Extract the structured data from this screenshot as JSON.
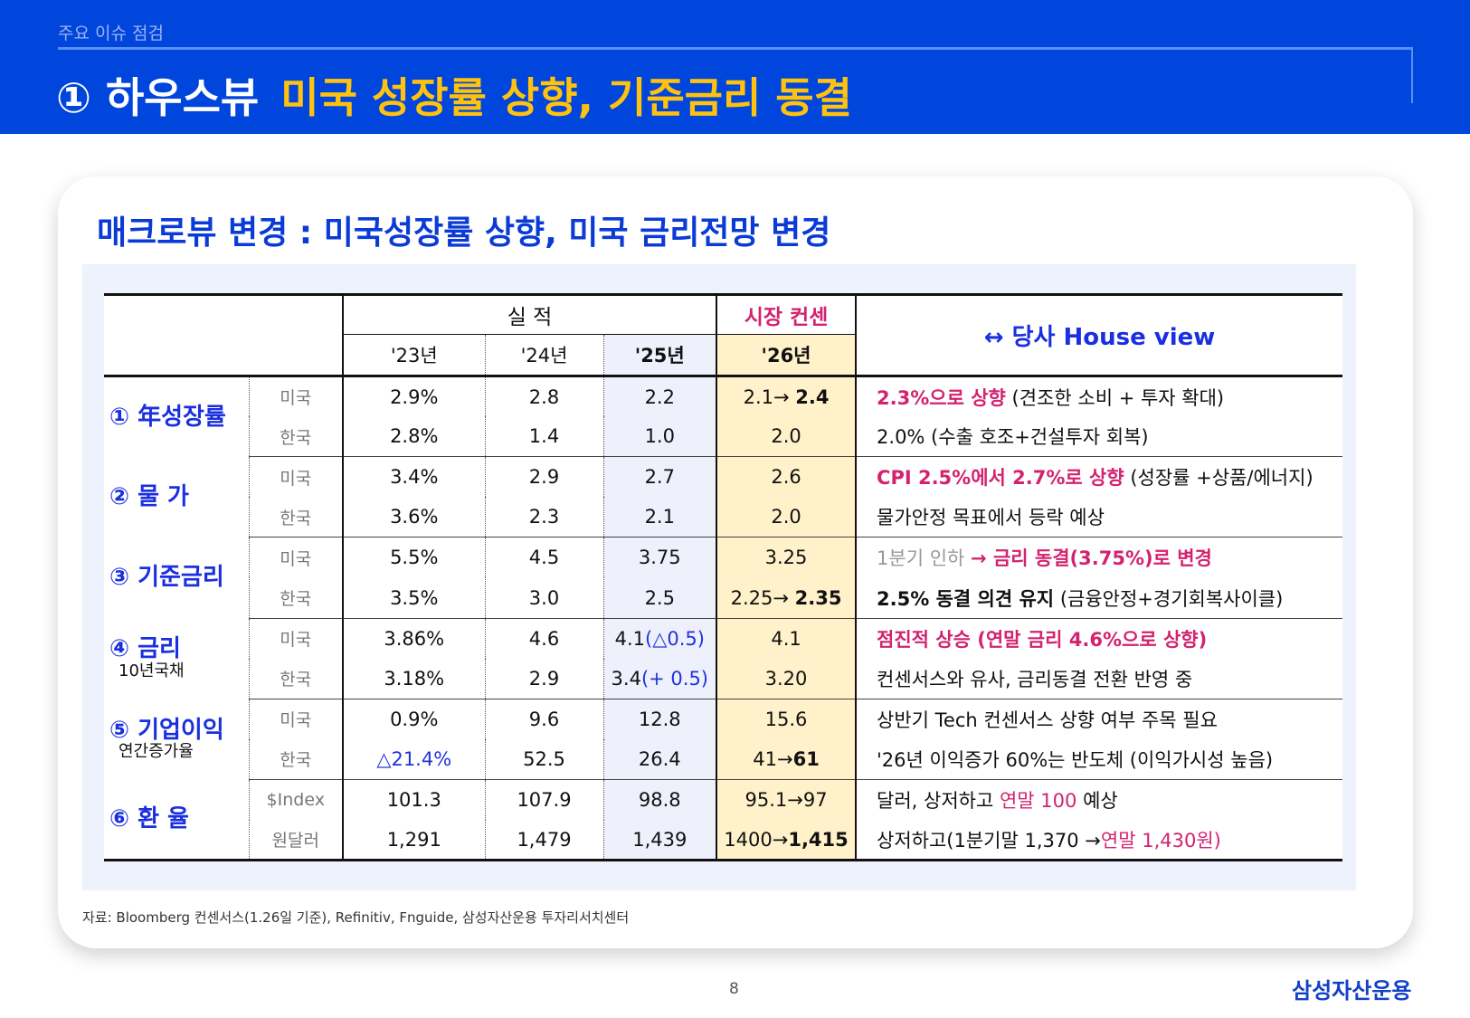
{
  "header": {
    "section": "주요 이슈 점검",
    "title_main": "① 하우스뷰",
    "title_highlight": "미국 성장률 상향, 기준금리 동결"
  },
  "card": {
    "subtitle": "매크로뷰 변경 : 미국성장률 상향, 미국 금리전망 변경"
  },
  "table": {
    "header_actual": "실 적",
    "header_consensus": "시장 컨센",
    "header_view": "↔ 당사 House view",
    "years": [
      "'23년",
      "'24년",
      "'25년",
      "'26년"
    ],
    "groups": [
      {
        "label": "① 年성장률",
        "sub": "",
        "rows": [
          {
            "country": "미국",
            "cells": [
              [
                {
                  "t": "2.9%"
                }
              ],
              [
                {
                  "t": "2.8"
                }
              ],
              [
                {
                  "t": "2.2"
                }
              ],
              [
                {
                  "t": "2.1→ "
                },
                {
                  "t": "2.4",
                  "s": "b"
                }
              ]
            ],
            "view": [
              {
                "t": "2.3%으로 상향",
                "s": "pb"
              },
              {
                "t": " (견조한 소비 + 투자 확대)"
              }
            ]
          },
          {
            "country": "한국",
            "cells": [
              [
                {
                  "t": "2.8%"
                }
              ],
              [
                {
                  "t": "1.4"
                }
              ],
              [
                {
                  "t": "1.0"
                }
              ],
              [
                {
                  "t": "2.0"
                }
              ]
            ],
            "view": [
              {
                "t": "2.0% (수출 호조+건설투자 회복)"
              }
            ]
          }
        ]
      },
      {
        "label": "② 물 가",
        "sub": "",
        "rows": [
          {
            "country": "미국",
            "cells": [
              [
                {
                  "t": "3.4%"
                }
              ],
              [
                {
                  "t": "2.9"
                }
              ],
              [
                {
                  "t": "2.7"
                }
              ],
              [
                {
                  "t": "2.6"
                }
              ]
            ],
            "view": [
              {
                "t": "CPI 2.5%에서 2.7%로 상향",
                "s": "pb"
              },
              {
                "t": " (성장률 +상품/에너지)"
              }
            ]
          },
          {
            "country": "한국",
            "cells": [
              [
                {
                  "t": "3.6%"
                }
              ],
              [
                {
                  "t": "2.3"
                }
              ],
              [
                {
                  "t": "2.1"
                }
              ],
              [
                {
                  "t": "2.0"
                }
              ]
            ],
            "view": [
              {
                "t": "물가안정 목표에서 등락 예상"
              }
            ]
          }
        ]
      },
      {
        "label": "③ 기준금리",
        "sub": "",
        "rows": [
          {
            "country": "미국",
            "cells": [
              [
                {
                  "t": "5.5%"
                }
              ],
              [
                {
                  "t": "4.5"
                }
              ],
              [
                {
                  "t": "3.75"
                }
              ],
              [
                {
                  "t": "3.25"
                }
              ]
            ],
            "view": [
              {
                "t": "1분기 인하 ",
                "s": "g"
              },
              {
                "t": " → 금리 동결(3.75%)로 변경",
                "s": "pb"
              }
            ]
          },
          {
            "country": "한국",
            "cells": [
              [
                {
                  "t": "3.5%"
                }
              ],
              [
                {
                  "t": "3.0"
                }
              ],
              [
                {
                  "t": "2.5"
                }
              ],
              [
                {
                  "t": "2.25→ "
                },
                {
                  "t": "2.35",
                  "s": "b"
                }
              ]
            ],
            "view": [
              {
                "t": "2.5% 동결 의견 유지",
                "s": "b"
              },
              {
                "t": " (금융안정+경기회복사이클)"
              }
            ]
          }
        ]
      },
      {
        "label": "④ 금리",
        "sub": "10년국채",
        "rows": [
          {
            "country": "미국",
            "cells": [
              [
                {
                  "t": "3.86%"
                }
              ],
              [
                {
                  "t": "4.6"
                }
              ],
              [
                {
                  "t": "4.1"
                },
                {
                  "t": "(△0.5)",
                  "s": "bl"
                }
              ],
              [
                {
                  "t": "4.1"
                }
              ]
            ],
            "view": [
              {
                "t": "점진적 상승 (연말 금리 4.6%으로 상향)",
                "s": "pb"
              }
            ]
          },
          {
            "country": "한국",
            "cells": [
              [
                {
                  "t": "3.18%"
                }
              ],
              [
                {
                  "t": "2.9"
                }
              ],
              [
                {
                  "t": "3.4"
                },
                {
                  "t": "(+ 0.5)",
                  "s": "bl"
                }
              ],
              [
                {
                  "t": "3.20"
                }
              ]
            ],
            "view": [
              {
                "t": "컨센서스와 유사, 금리동결 전환 반영 중"
              }
            ]
          }
        ]
      },
      {
        "label": "⑤ 기업이익",
        "sub": "연간증가율",
        "rows": [
          {
            "country": "미국",
            "cells": [
              [
                {
                  "t": "0.9%"
                }
              ],
              [
                {
                  "t": "9.6"
                }
              ],
              [
                {
                  "t": "12.8"
                }
              ],
              [
                {
                  "t": "15.6"
                }
              ]
            ],
            "view": [
              {
                "t": "상반기 Tech 컨센서스 상향 여부 주목 필요"
              }
            ]
          },
          {
            "country": "한국",
            "cells": [
              [
                {
                  "t": "△21.4%",
                  "s": "bl"
                }
              ],
              [
                {
                  "t": "52.5"
                }
              ],
              [
                {
                  "t": "26.4"
                }
              ],
              [
                {
                  "t": "41→"
                },
                {
                  "t": "61",
                  "s": "b"
                }
              ]
            ],
            "view": [
              {
                "t": "'26년 이익증가 60%는 반도체 (이익가시성 높음)"
              }
            ]
          }
        ]
      },
      {
        "label": "⑥ 환 율",
        "sub": "",
        "rows": [
          {
            "country": "$Index",
            "cells": [
              [
                {
                  "t": "101.3"
                }
              ],
              [
                {
                  "t": "107.9"
                }
              ],
              [
                {
                  "t": "98.8"
                }
              ],
              [
                {
                  "t": "95.1→97"
                }
              ]
            ],
            "view": [
              {
                "t": "달러, 상저하고 "
              },
              {
                "t": "연말 100",
                "s": "p"
              },
              {
                "t": " 예상"
              }
            ]
          },
          {
            "country": "원달러",
            "cells": [
              [
                {
                  "t": "1,291"
                }
              ],
              [
                {
                  "t": "1,479"
                }
              ],
              [
                {
                  "t": "1,439"
                }
              ],
              [
                {
                  "t": "1400→"
                },
                {
                  "t": "1,415",
                  "s": "b"
                }
              ]
            ],
            "view": [
              {
                "t": "상저하고(1분기말 1,370 →"
              },
              {
                "t": "연말 1,430원)",
                "s": "p"
              }
            ]
          }
        ]
      }
    ]
  },
  "footer": {
    "source": "자료: Bloomberg 컨센서스(1.26일 기준), Refinitiv, Fnguide, 삼성자산운용 투자리서치센터",
    "page": "8",
    "logo": "삼성자산운용"
  },
  "colors": {
    "header_blue": "#0046DC",
    "title_yellow": "#FFC20E",
    "highlight_pink": "#D3236F",
    "label_blue": "#1a2fe0",
    "consensus_bg": "#FFF1C9",
    "col25_bg": "#EEF0FC"
  }
}
